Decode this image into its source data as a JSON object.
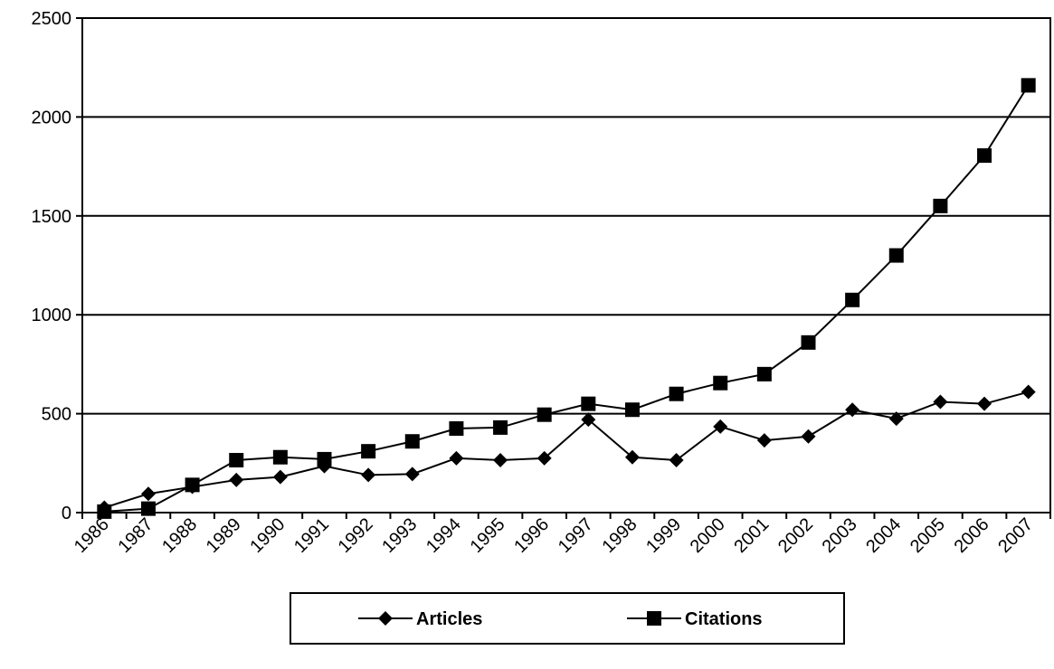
{
  "chart_data": {
    "type": "line",
    "title": "",
    "xlabel": "",
    "ylabel": "",
    "x": [
      "1986",
      "1987",
      "1988",
      "1989",
      "1990",
      "1991",
      "1992",
      "1993",
      "1994",
      "1995",
      "1996",
      "1997",
      "1998",
      "1999",
      "2000",
      "2001",
      "2002",
      "2003",
      "2004",
      "2005",
      "2006",
      "2007"
    ],
    "ylim": [
      0,
      2500
    ],
    "yticks": [
      "0",
      "500",
      "1000",
      "1500",
      "2000",
      "2500"
    ],
    "grid": "horizontal",
    "legend": "bottom",
    "series": [
      {
        "name": "Articles",
        "marker": "diamond",
        "color": "#000000",
        "values": [
          25,
          95,
          130,
          165,
          180,
          235,
          190,
          195,
          275,
          265,
          275,
          470,
          280,
          265,
          435,
          365,
          385,
          520,
          475,
          560,
          550,
          610
        ]
      },
      {
        "name": "Citations",
        "marker": "square",
        "color": "#000000",
        "values": [
          5,
          20,
          140,
          265,
          280,
          270,
          310,
          360,
          425,
          430,
          495,
          550,
          520,
          600,
          655,
          700,
          860,
          1075,
          1300,
          1550,
          1805,
          2160
        ]
      }
    ]
  }
}
